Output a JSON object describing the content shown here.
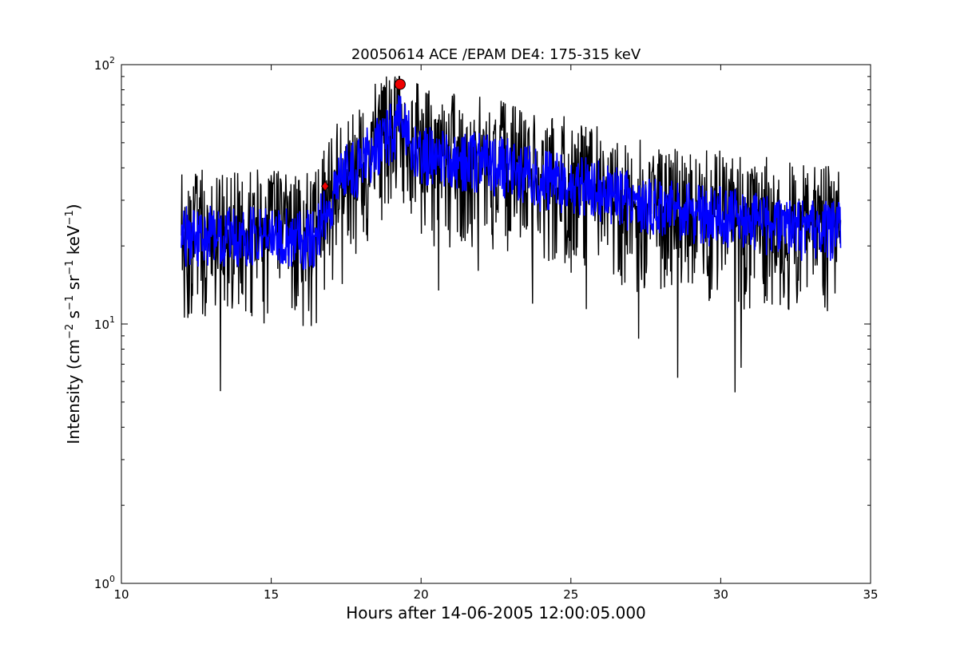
{
  "chart_data": {
    "type": "line",
    "title": "20050614 ACE /EPAM DE4: 175-315 keV",
    "xlabel": "Hours after 14-06-2005 12:00:05.000",
    "ylabel_parts": {
      "prefix": "Intensity (cm",
      "exp1": "−2",
      "mid1": " s",
      "exp2": "−1",
      "mid2": " sr",
      "exp3": "−1",
      "mid3": " keV",
      "exp4": "−1",
      "suffix": ")"
    },
    "xlim": [
      10,
      35
    ],
    "ylim": [
      1,
      100
    ],
    "yscale": "log",
    "xticks": [
      10,
      15,
      20,
      25,
      30,
      35
    ],
    "xtick_labels": [
      "10",
      "15",
      "20",
      "25",
      "30",
      "35"
    ],
    "yticks": [
      1,
      10,
      100
    ],
    "ytick_labels": [
      {
        "base": "10",
        "exp": "0"
      },
      {
        "base": "10",
        "exp": "1"
      },
      {
        "base": "10",
        "exp": "2"
      }
    ],
    "grid": false,
    "series": [
      {
        "color": "#000000",
        "x_start": 12.0,
        "x_end": 34.0,
        "envelope_x": [
          12.0,
          13.0,
          14.0,
          15.0,
          16.0,
          16.5,
          17.0,
          17.5,
          18.0,
          18.5,
          19.0,
          19.3,
          19.6,
          20.0,
          21.0,
          22.0,
          23.0,
          24.0,
          25.0,
          26.0,
          27.0,
          28.0,
          29.0,
          30.0,
          31.0,
          32.0,
          33.0,
          34.0
        ],
        "envelope_y_median": [
          22,
          22,
          22,
          22,
          21,
          22,
          30,
          38,
          42,
          48,
          55,
          60,
          52,
          45,
          43,
          42,
          40,
          36,
          35,
          33,
          30,
          28,
          27,
          26,
          25,
          24,
          23,
          23
        ],
        "spread_low": 0.45,
        "spread_high": 1.8
      },
      {
        "color": "#0000ff",
        "x_start": 12.0,
        "x_end": 34.0,
        "envelope_x": [
          12.0,
          13.0,
          14.0,
          15.0,
          16.0,
          16.5,
          17.0,
          17.5,
          18.0,
          18.5,
          19.0,
          19.3,
          19.6,
          20.0,
          21.0,
          22.0,
          23.0,
          24.0,
          25.0,
          26.0,
          27.0,
          28.0,
          29.0,
          30.0,
          31.0,
          32.0,
          33.0,
          34.0
        ],
        "envelope_y_median": [
          22,
          22,
          22,
          22,
          21,
          22,
          30,
          38,
          42,
          48,
          55,
          60,
          52,
          45,
          43,
          42,
          40,
          36,
          35,
          33,
          30,
          28,
          27,
          26,
          25,
          24,
          23,
          23
        ],
        "spread_low": 0.75,
        "spread_high": 1.3
      }
    ],
    "markers": [
      {
        "type": "peak",
        "x": 19.3,
        "y": 84,
        "color": "#ee0000",
        "shape": "circle"
      },
      {
        "type": "onset",
        "x": 16.8,
        "y": 34,
        "color": "#ee0000",
        "shape": "diamond"
      }
    ]
  }
}
